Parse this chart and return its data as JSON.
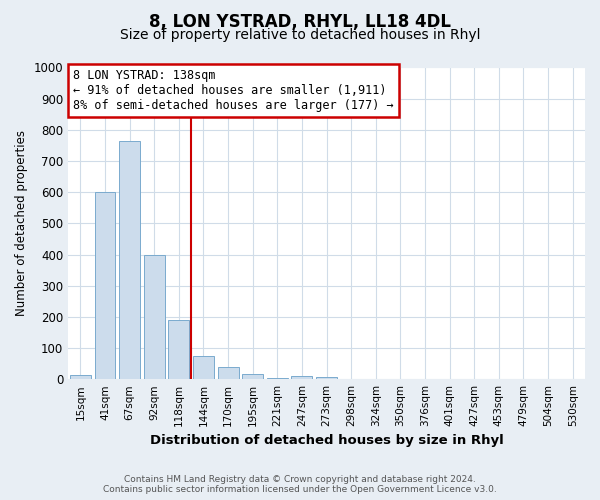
{
  "title": "8, LON YSTRAD, RHYL, LL18 4DL",
  "subtitle": "Size of property relative to detached houses in Rhyl",
  "xlabel": "Distribution of detached houses by size in Rhyl",
  "ylabel": "Number of detached properties",
  "bar_labels": [
    "15sqm",
    "41sqm",
    "67sqm",
    "92sqm",
    "118sqm",
    "144sqm",
    "170sqm",
    "195sqm",
    "221sqm",
    "247sqm",
    "273sqm",
    "298sqm",
    "324sqm",
    "350sqm",
    "376sqm",
    "401sqm",
    "427sqm",
    "453sqm",
    "479sqm",
    "504sqm",
    "530sqm"
  ],
  "bar_values": [
    15,
    600,
    765,
    400,
    190,
    75,
    40,
    18,
    5,
    10,
    8,
    0,
    0,
    0,
    0,
    0,
    0,
    0,
    0,
    0,
    0
  ],
  "bar_color": "#ccdcec",
  "bar_edge_color": "#7aaace",
  "vline_color": "#cc0000",
  "ylim": [
    0,
    1000
  ],
  "yticks": [
    0,
    100,
    200,
    300,
    400,
    500,
    600,
    700,
    800,
    900,
    1000
  ],
  "annotation_title": "8 LON YSTRAD: 138sqm",
  "annotation_line1": "← 91% of detached houses are smaller (1,911)",
  "annotation_line2": "8% of semi-detached houses are larger (177) →",
  "annotation_box_color": "#ffffff",
  "annotation_box_edge": "#cc0000",
  "footer_line1": "Contains HM Land Registry data © Crown copyright and database right 2024.",
  "footer_line2": "Contains public sector information licensed under the Open Government Licence v3.0.",
  "fig_background_color": "#e8eef4",
  "plot_background_color": "#ffffff",
  "grid_color": "#d0dce8",
  "title_fontsize": 12,
  "subtitle_fontsize": 10
}
